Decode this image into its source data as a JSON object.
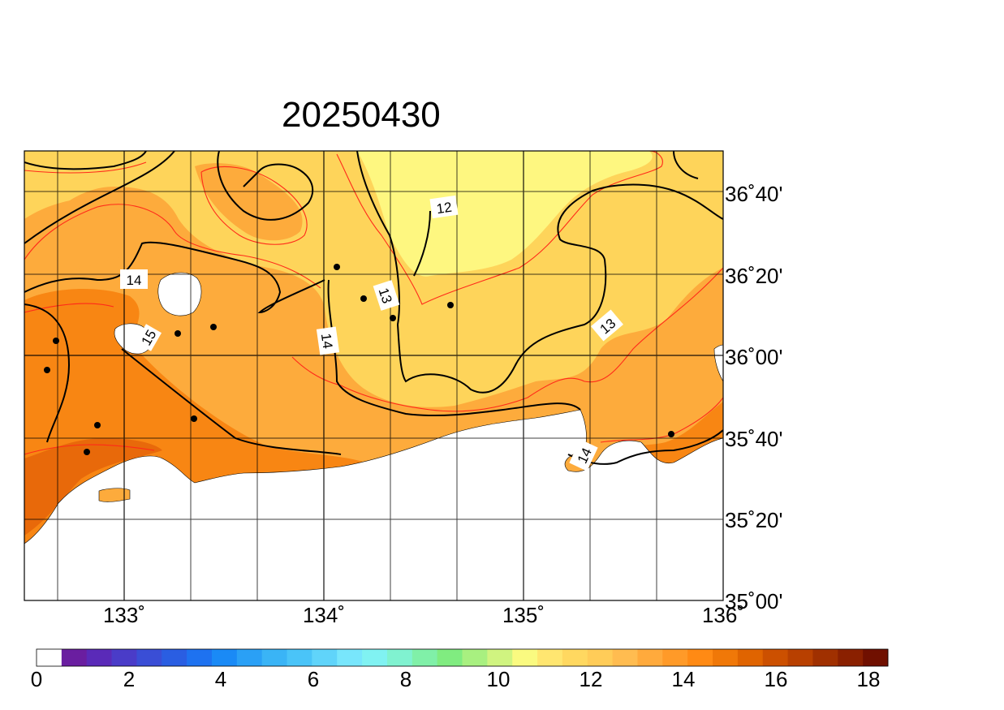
{
  "title": "20250430",
  "lon_ticks": [
    "133˚",
    "134˚",
    "135˚",
    "136˚"
  ],
  "lat_ticks": [
    "36˚40'",
    "36˚20'",
    "36˚00'",
    "35˚40'",
    "35˚20'",
    "35˚00'"
  ],
  "contour_labels": [
    "12",
    "13",
    "14",
    "13",
    "14",
    "14",
    "15"
  ],
  "colorbar": {
    "labels": [
      "0",
      "2",
      "4",
      "6",
      "8",
      "10",
      "12",
      "14",
      "16",
      "18"
    ],
    "colors": [
      "#ffffff",
      "#6a1ea0",
      "#5a2ab8",
      "#4a3cc8",
      "#3a4ed6",
      "#2a5ee2",
      "#1e72f0",
      "#1a8af6",
      "#2aa0f6",
      "#3ab4f6",
      "#4ac4f8",
      "#60d4fa",
      "#78e6fc",
      "#80f2f2",
      "#80f2d0",
      "#80f0a8",
      "#80ec80",
      "#a8f080",
      "#d0f480",
      "#fafa80",
      "#ffe670",
      "#ffd860",
      "#ffcc58",
      "#ffbc50",
      "#ffaa3c",
      "#ff9a28",
      "#ff8a14",
      "#f07808",
      "#e06400",
      "#cc5000",
      "#b84000",
      "#a03000",
      "#8a2000",
      "#701000"
    ]
  },
  "colors": {
    "sst_12": "#fef780",
    "sst_13": "#fed45a",
    "sst_14": "#fdab3c",
    "sst_15": "#f88613",
    "sst_16": "#e8690a",
    "contour_black": "#000000",
    "contour_red": "#ff2a1a",
    "land": "#ffffff"
  }
}
